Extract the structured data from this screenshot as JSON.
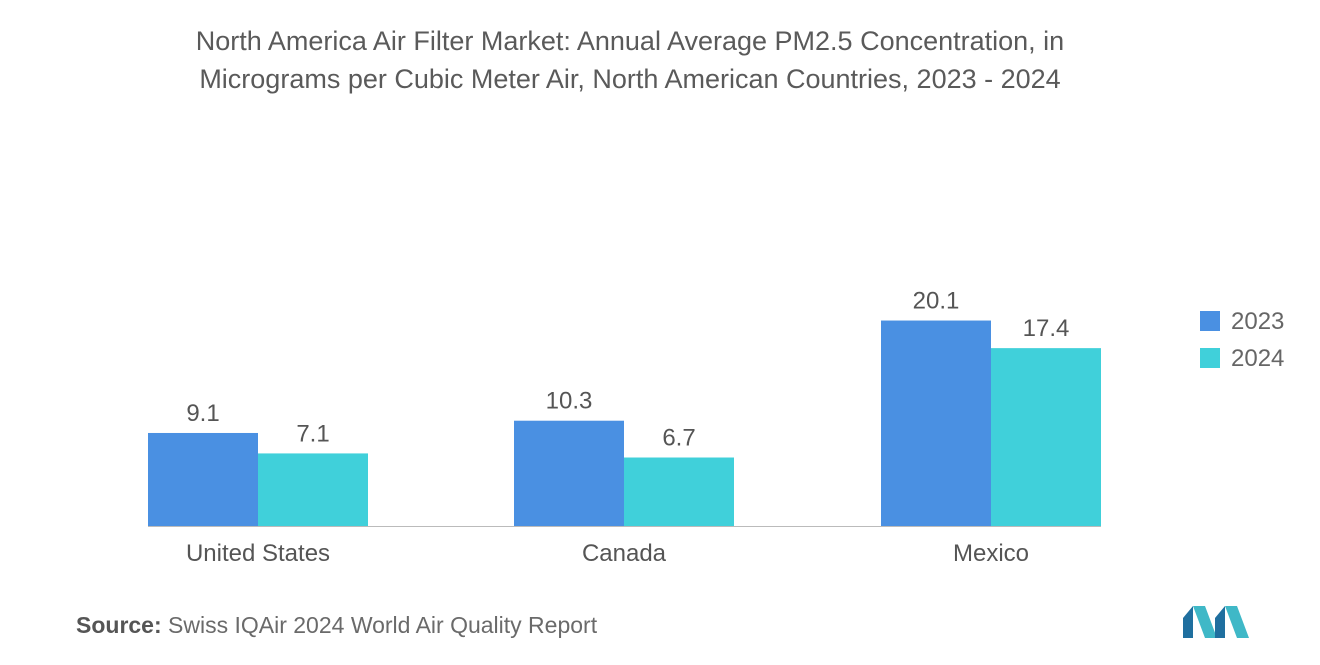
{
  "chart_data": {
    "type": "bar",
    "title": "North America Air Filter Market: Annual Average PM2.5 Concentration, in Micrograms per Cubic Meter Air, North American Countries, 2023 - 2024",
    "categories": [
      "United States",
      "Canada",
      "Mexico"
    ],
    "series": [
      {
        "name": "2023",
        "values": [
          9.1,
          10.3,
          20.1
        ],
        "color": "#4a90e2"
      },
      {
        "name": "2024",
        "values": [
          7.1,
          6.7,
          17.4
        ],
        "color": "#40d0da"
      }
    ],
    "xlabel": "",
    "ylabel": "",
    "ylim": [
      0,
      22.5
    ],
    "grid": false,
    "legend": "right"
  },
  "title_line1": "North America Air Filter Market: Annual Average PM2.5 Concentration, in",
  "title_line2": "Micrograms per Cubic Meter Air, North American Countries, 2023 - 2024",
  "source_label": "Source:",
  "source_text": "Swiss IQAir 2024 World Air Quality Report",
  "logo_name": "mordor-intelligence-logo",
  "axis_color": "#bbbbbb"
}
